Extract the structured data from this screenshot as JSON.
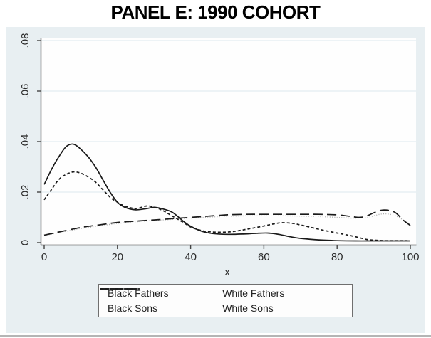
{
  "title": "PANEL E: 1990 COHORT",
  "colors": {
    "panel_bg": "#e8eff2",
    "plot_bg": "#fefefe",
    "grid": "#dce8ee",
    "axis": "#454545",
    "tick_text": "#2a2a2a",
    "line_black": "#1a1a1a",
    "line_gray": "#a9a9a9",
    "legend_border": "#6f6f6f"
  },
  "chart_data": {
    "type": "line",
    "title": "PANEL E: 1990 COHORT",
    "xlabel": "x",
    "ylabel": "",
    "xlim": [
      0,
      100
    ],
    "ylim": [
      0,
      0.08
    ],
    "xtick_vals": [
      0,
      20,
      40,
      60,
      80,
      100
    ],
    "xtick_labels": [
      "0",
      "20",
      "40",
      "60",
      "80",
      "100"
    ],
    "ytick_vals": [
      0,
      0.02,
      0.04,
      0.06,
      0.08
    ],
    "ytick_labels": [
      "0",
      ".02",
      ".04",
      ".06",
      ".08"
    ],
    "grid": "horizontal",
    "legend_position": "bottom-boxed",
    "series": [
      {
        "name": "White Fathers",
        "style": "dotted",
        "color": "#a9a9a9",
        "width": 1.3,
        "x": [
          0,
          5,
          10,
          15,
          20,
          25,
          30,
          35,
          40,
          45,
          50,
          55,
          60,
          65,
          70,
          75,
          80,
          84,
          88,
          90,
          92,
          94,
          96,
          98,
          100
        ],
        "y": [
          0.0028,
          0.0042,
          0.0056,
          0.0066,
          0.0076,
          0.0082,
          0.0088,
          0.0092,
          0.0097,
          0.0101,
          0.0104,
          0.0106,
          0.0106,
          0.0106,
          0.0105,
          0.0103,
          0.01,
          0.0097,
          0.0099,
          0.0106,
          0.0113,
          0.0113,
          0.0106,
          0.009,
          0.0072
        ]
      },
      {
        "name": "White Sons",
        "style": "long-dash",
        "color": "#1a1a1a",
        "width": 1.7,
        "x": [
          0,
          5,
          10,
          15,
          20,
          25,
          30,
          35,
          40,
          45,
          50,
          55,
          60,
          65,
          70,
          75,
          80,
          83,
          86,
          88,
          90,
          92,
          94,
          96,
          98,
          100
        ],
        "y": [
          0.003,
          0.0045,
          0.006,
          0.007,
          0.008,
          0.0085,
          0.009,
          0.0095,
          0.01,
          0.0105,
          0.011,
          0.0112,
          0.0112,
          0.0112,
          0.0112,
          0.0112,
          0.011,
          0.0105,
          0.01,
          0.0105,
          0.0118,
          0.0128,
          0.0128,
          0.0118,
          0.009,
          0.0068
        ]
      },
      {
        "name": "Black Sons",
        "style": "short-dash",
        "color": "#1a1a1a",
        "width": 1.7,
        "x": [
          0,
          2,
          4,
          6,
          8,
          10,
          12,
          14,
          16,
          18,
          20,
          22,
          25,
          28,
          30,
          32,
          35,
          38,
          40,
          43,
          46,
          50,
          53,
          56,
          60,
          63,
          65,
          68,
          70,
          73,
          76,
          80,
          83,
          86,
          88,
          90,
          93,
          96,
          100
        ],
        "y": [
          0.017,
          0.021,
          0.025,
          0.027,
          0.028,
          0.0275,
          0.026,
          0.024,
          0.021,
          0.018,
          0.016,
          0.0145,
          0.0135,
          0.0145,
          0.014,
          0.013,
          0.0105,
          0.008,
          0.0062,
          0.0048,
          0.0042,
          0.0042,
          0.0047,
          0.0055,
          0.0066,
          0.0075,
          0.0079,
          0.0076,
          0.007,
          0.006,
          0.005,
          0.0038,
          0.003,
          0.002,
          0.0013,
          0.001,
          0.0008,
          0.0008,
          0.0008
        ]
      },
      {
        "name": "Black Fathers",
        "style": "solid",
        "color": "#1a1a1a",
        "width": 1.7,
        "x": [
          0,
          2,
          4,
          6,
          8,
          10,
          12,
          14,
          16,
          18,
          20,
          22,
          25,
          28,
          30,
          32,
          35,
          38,
          40,
          43,
          46,
          50,
          54,
          58,
          61,
          64,
          67,
          70,
          75,
          80,
          85,
          90,
          95,
          100
        ],
        "y": [
          0.023,
          0.029,
          0.034,
          0.038,
          0.039,
          0.037,
          0.034,
          0.03,
          0.025,
          0.02,
          0.016,
          0.014,
          0.013,
          0.0135,
          0.014,
          0.0135,
          0.012,
          0.0085,
          0.0065,
          0.0045,
          0.0036,
          0.0033,
          0.0034,
          0.0037,
          0.0038,
          0.0033,
          0.0024,
          0.0017,
          0.0011,
          0.0008,
          0.0007,
          0.0007,
          0.0007,
          0.0007
        ]
      }
    ]
  },
  "legend": {
    "items": [
      {
        "label": "Black Fathers",
        "style": "solid",
        "color": "#1a1a1a"
      },
      {
        "label": "White Fathers",
        "style": "dotted",
        "color": "#a9a9a9"
      },
      {
        "label": "Black Sons",
        "style": "short-dash",
        "color": "#1a1a1a"
      },
      {
        "label": "White Sons",
        "style": "long-dash",
        "color": "#1a1a1a"
      }
    ]
  }
}
